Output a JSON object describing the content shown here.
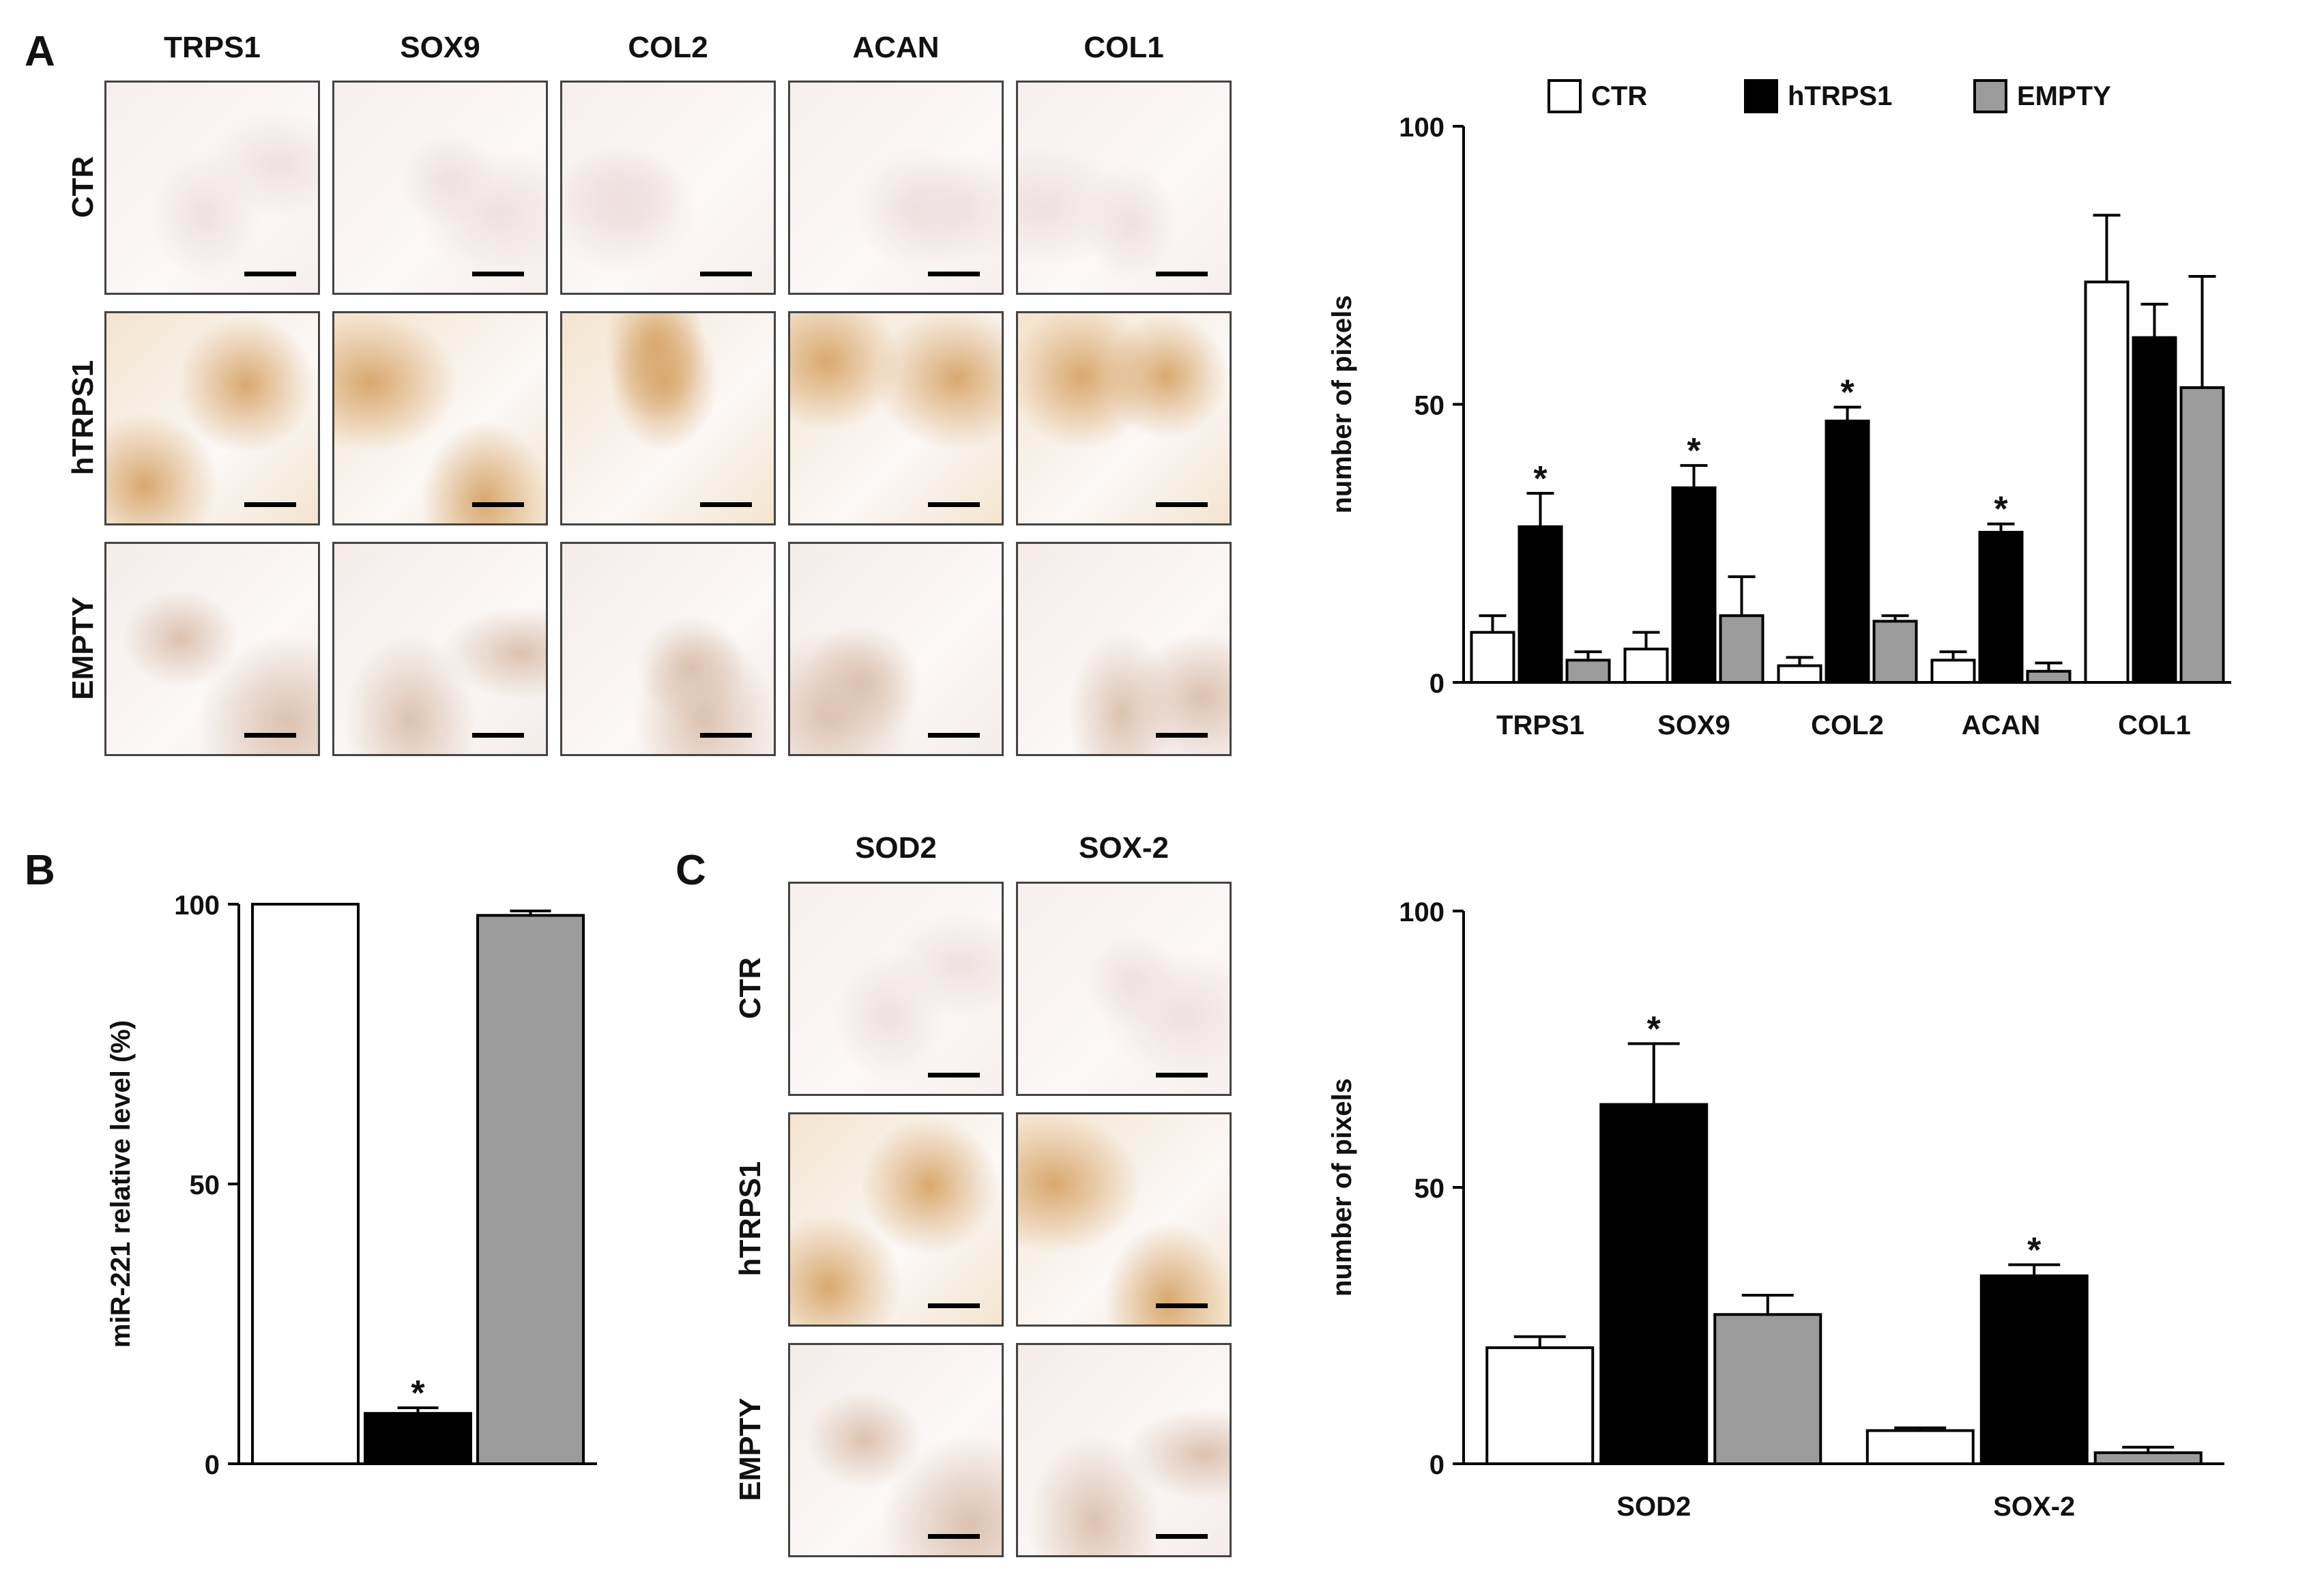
{
  "panels": {
    "A": "A",
    "B": "B",
    "C": "C"
  },
  "micrographs": {
    "A": {
      "columns": [
        "TRPS1",
        "SOX9",
        "COL2",
        "ACAN",
        "COL1"
      ],
      "rows": [
        "CTR",
        "hTRPS1",
        "EMPTY"
      ]
    },
    "C": {
      "columns": [
        "SOD2",
        "SOX-2"
      ],
      "rows": [
        "CTR",
        "hTRPS1",
        "EMPTY"
      ]
    }
  },
  "colors": {
    "CTR": "#ffffff",
    "hTRPS1": "#000000",
    "EMPTY": "#9b9b9b"
  },
  "chart_data": [
    {
      "id": "A",
      "type": "bar",
      "ylabel": "number of pixels",
      "xlabel": "",
      "ylim": [
        0,
        100
      ],
      "yticks": [
        0,
        50,
        100
      ],
      "legend": {
        "placement": "top",
        "entries": [
          "CTR",
          "hTRPS1",
          "EMPTY"
        ]
      },
      "categories": [
        "TRPS1",
        "SOX9",
        "COL2",
        "ACAN",
        "COL1"
      ],
      "series": [
        {
          "name": "CTR",
          "values": [
            9,
            6,
            3,
            4,
            72
          ],
          "errors": [
            3,
            3,
            1.5,
            1.5,
            12
          ]
        },
        {
          "name": "hTRPS1",
          "values": [
            28,
            35,
            47,
            27,
            62
          ],
          "errors": [
            6,
            4,
            2.5,
            1.5,
            6
          ]
        },
        {
          "name": "EMPTY",
          "values": [
            4,
            12,
            11,
            2,
            53
          ],
          "errors": [
            1.5,
            7,
            1,
            1.5,
            20
          ]
        }
      ],
      "significance": [
        {
          "category": "TRPS1",
          "series": "hTRPS1",
          "mark": "*"
        },
        {
          "category": "SOX9",
          "series": "hTRPS1",
          "mark": "*"
        },
        {
          "category": "COL2",
          "series": "hTRPS1",
          "mark": "*"
        },
        {
          "category": "ACAN",
          "series": "hTRPS1",
          "mark": "*"
        }
      ]
    },
    {
      "id": "B",
      "type": "bar",
      "ylabel": "miR-221 relative level (%)",
      "xlabel": "",
      "ylim": [
        0,
        100
      ],
      "yticks": [
        0,
        50,
        100
      ],
      "categories": [
        ""
      ],
      "series": [
        {
          "name": "CTR",
          "values": [
            100
          ],
          "errors": [
            0
          ]
        },
        {
          "name": "hTRPS1",
          "values": [
            9
          ],
          "errors": [
            1
          ]
        },
        {
          "name": "EMPTY",
          "values": [
            98
          ],
          "errors": [
            0.8
          ]
        }
      ],
      "significance": [
        {
          "category": "",
          "series": "hTRPS1",
          "mark": "*"
        }
      ]
    },
    {
      "id": "C",
      "type": "bar",
      "ylabel": "number of pixels",
      "xlabel": "",
      "ylim": [
        0,
        100
      ],
      "yticks": [
        0,
        50,
        100
      ],
      "categories": [
        "SOD2",
        "SOX-2"
      ],
      "series": [
        {
          "name": "CTR",
          "values": [
            21,
            6
          ],
          "errors": [
            2,
            0.5
          ]
        },
        {
          "name": "hTRPS1",
          "values": [
            65,
            34
          ],
          "errors": [
            11,
            2
          ]
        },
        {
          "name": "EMPTY",
          "values": [
            27,
            2
          ],
          "errors": [
            3.5,
            1
          ]
        }
      ],
      "significance": [
        {
          "category": "SOD2",
          "series": "hTRPS1",
          "mark": "*"
        },
        {
          "category": "SOX-2",
          "series": "hTRPS1",
          "mark": "*"
        }
      ]
    }
  ]
}
